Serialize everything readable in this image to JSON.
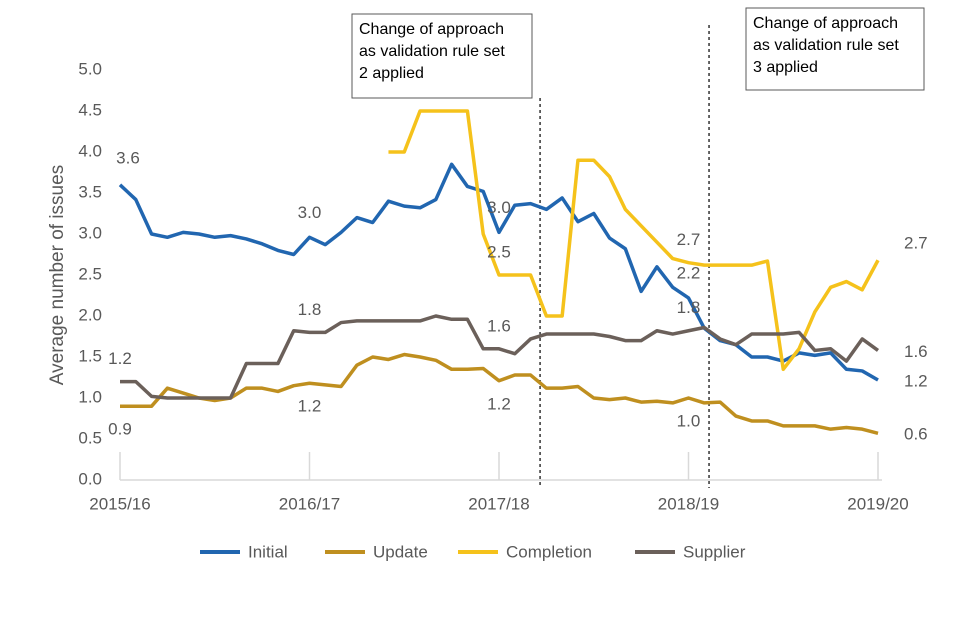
{
  "chart_data": {
    "type": "line",
    "y_label": "Average number of issues",
    "categories": [
      "2015/16",
      null,
      null,
      null,
      null,
      null,
      null,
      null,
      null,
      null,
      null,
      null,
      "2016/17",
      null,
      null,
      null,
      null,
      null,
      null,
      null,
      null,
      null,
      null,
      null,
      "2017/18",
      null,
      null,
      null,
      null,
      null,
      null,
      null,
      null,
      null,
      null,
      null,
      "2018/19",
      null,
      null,
      null,
      null,
      null,
      null,
      null,
      null,
      null,
      null,
      null,
      "2019/20"
    ],
    "ylim": [
      0,
      5
    ],
    "yticks": [
      {
        "value": 0,
        "label": "0.0"
      },
      0.5,
      {
        "value": 1,
        "label": "1.0"
      },
      1.5,
      {
        "value": 2,
        "label": "2.0"
      },
      2.5,
      {
        "value": 3,
        "label": "3.0"
      },
      3.5,
      {
        "value": 4,
        "label": "4.0"
      },
      4.5,
      {
        "value": 5,
        "label": "5.0"
      }
    ],
    "grid": false,
    "legend": "bottom",
    "series": [
      {
        "name": "Initial",
        "color": "#2166b0",
        "values": [
          3.6,
          3.42,
          3.0,
          2.96,
          3.02,
          3.0,
          2.96,
          2.98,
          2.94,
          2.88,
          2.8,
          2.75,
          2.96,
          2.87,
          3.02,
          3.2,
          3.14,
          3.4,
          3.34,
          3.32,
          3.42,
          3.85,
          3.58,
          3.52,
          3.02,
          3.35,
          3.37,
          3.3,
          3.44,
          3.15,
          3.25,
          2.95,
          2.82,
          2.3,
          2.6,
          2.35,
          2.22,
          1.85,
          1.7,
          1.65,
          1.5,
          1.5,
          1.45,
          1.55,
          1.52,
          1.55,
          1.35,
          1.33,
          1.22
        ],
        "value_labels": [
          "3.6",
          null,
          null,
          null,
          null,
          null,
          null,
          null,
          null,
          null,
          null,
          null,
          "3.0",
          null,
          null,
          null,
          null,
          null,
          null,
          null,
          null,
          null,
          null,
          null,
          "3.0",
          null,
          null,
          null,
          null,
          null,
          null,
          null,
          null,
          null,
          null,
          null,
          "2.2",
          null,
          null,
          null,
          null,
          null,
          null,
          null,
          null,
          null,
          null,
          null,
          "1.2"
        ]
      },
      {
        "name": "Update",
        "color": "#bf8f1f",
        "values": [
          0.9,
          0.9,
          0.9,
          1.12,
          1.06,
          1.0,
          0.97,
          1.0,
          1.12,
          1.12,
          1.08,
          1.15,
          1.18,
          1.16,
          1.14,
          1.4,
          1.5,
          1.47,
          1.53,
          1.5,
          1.46,
          1.35,
          1.35,
          1.36,
          1.21,
          1.28,
          1.28,
          1.12,
          1.12,
          1.14,
          1.0,
          0.98,
          1.0,
          0.95,
          0.96,
          0.94,
          1.0,
          0.94,
          0.95,
          0.78,
          0.72,
          0.72,
          0.66,
          0.66,
          0.66,
          0.62,
          0.64,
          0.62,
          0.57
        ],
        "value_labels": [
          "0.9",
          null,
          null,
          null,
          null,
          null,
          null,
          null,
          null,
          null,
          null,
          null,
          "1.2",
          null,
          null,
          null,
          null,
          null,
          null,
          null,
          null,
          null,
          null,
          null,
          "1.2",
          null,
          null,
          null,
          null,
          null,
          null,
          null,
          null,
          null,
          null,
          null,
          "1.0",
          null,
          null,
          null,
          null,
          null,
          null,
          null,
          null,
          null,
          null,
          null,
          "0.6"
        ]
      },
      {
        "name": "Completion",
        "color": "#f5c21b",
        "values": [
          null,
          null,
          null,
          null,
          null,
          null,
          null,
          null,
          null,
          null,
          null,
          null,
          null,
          null,
          null,
          null,
          null,
          4.0,
          4.0,
          4.5,
          4.5,
          4.5,
          4.5,
          3.0,
          2.5,
          2.5,
          2.5,
          2.0,
          2.0,
          3.9,
          3.9,
          3.7,
          3.3,
          3.1,
          2.9,
          2.7,
          2.65,
          2.62,
          2.62,
          2.62,
          2.62,
          2.67,
          1.35,
          1.6,
          2.05,
          2.35,
          2.42,
          2.32,
          2.68
        ],
        "value_labels": [
          null,
          null,
          null,
          null,
          null,
          null,
          null,
          null,
          null,
          null,
          null,
          null,
          null,
          null,
          null,
          null,
          null,
          null,
          null,
          null,
          null,
          null,
          null,
          null,
          "2.5",
          null,
          null,
          null,
          null,
          null,
          null,
          null,
          null,
          null,
          null,
          null,
          "2.7",
          null,
          null,
          null,
          null,
          null,
          null,
          null,
          null,
          null,
          null,
          null,
          "2.7"
        ]
      },
      {
        "name": "Supplier",
        "color": "#6b605a",
        "values": [
          1.2,
          1.2,
          1.02,
          1.0,
          1.0,
          1.0,
          1.0,
          1.0,
          1.42,
          1.42,
          1.42,
          1.82,
          1.8,
          1.8,
          1.92,
          1.94,
          1.94,
          1.94,
          1.94,
          1.94,
          2.0,
          1.96,
          1.96,
          1.6,
          1.6,
          1.54,
          1.72,
          1.78,
          1.78,
          1.78,
          1.78,
          1.75,
          1.7,
          1.7,
          1.82,
          1.78,
          1.82,
          1.86,
          1.72,
          1.65,
          1.78,
          1.78,
          1.78,
          1.8,
          1.58,
          1.6,
          1.45,
          1.72,
          1.58
        ],
        "value_labels": [
          "1.2",
          null,
          null,
          null,
          null,
          null,
          null,
          null,
          null,
          null,
          null,
          null,
          "1.8",
          null,
          null,
          null,
          null,
          null,
          null,
          null,
          null,
          null,
          null,
          null,
          "1.6",
          null,
          null,
          null,
          null,
          null,
          null,
          null,
          null,
          null,
          null,
          null,
          "1.8",
          null,
          null,
          null,
          null,
          null,
          null,
          null,
          null,
          null,
          null,
          null,
          "1.6"
        ]
      }
    ],
    "annotations": [
      {
        "lines": [
          "Change of approach",
          "as validation rule set",
          "2 applied"
        ]
      },
      {
        "lines": [
          "Change of approach",
          "as validation rule set",
          "3 applied"
        ]
      }
    ]
  }
}
